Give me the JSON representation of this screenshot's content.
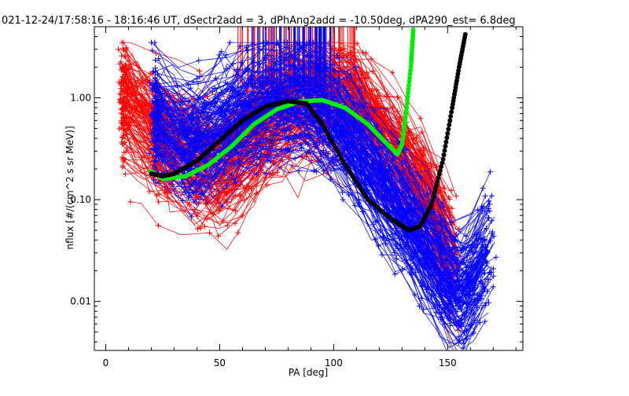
{
  "chart_data": {
    "type": "line",
    "title": "021-12-24/17:58:16 - 18:16:46 UT, dSectr2add = 3, dPhAng2add = -10.50deg, dPA290_est=    6.8deg",
    "xlabel": "PA [deg]",
    "ylabel": "nflux [#/(cm^2 s sr MeV)]",
    "xlim": [
      -5,
      183
    ],
    "ylim": [
      0.0033,
      5.0
    ],
    "yscale": "log",
    "grid": false,
    "x_ticks": [
      0,
      50,
      100,
      150
    ],
    "x_tick_labels": [
      "0",
      "50",
      "100",
      "150"
    ],
    "y_ticks": [
      0.01,
      0.1,
      1.0
    ],
    "y_tick_labels": [
      "0.01",
      "0.10",
      "1.00"
    ],
    "colors": {
      "red": "#ff0000",
      "blue": "#0000ff",
      "green": "#00ee00",
      "black": "#000000"
    },
    "series": [
      {
        "color": "red",
        "style": "line-with-plus-markers",
        "values_sample": [
          [
            8,
            0.9
          ],
          [
            25,
            0.35
          ],
          [
            50,
            0.18
          ],
          [
            75,
            0.65
          ],
          [
            88,
            0.95
          ],
          [
            100,
            0.92
          ],
          [
            110,
            0.85
          ],
          [
            125,
            0.3
          ],
          [
            140,
            0.1
          ],
          [
            155,
            0.02
          ]
        ]
      },
      {
        "color": "blue",
        "style": "line-with-plus-markers",
        "values_sample": [
          [
            22,
            0.6
          ],
          [
            35,
            0.3
          ],
          [
            50,
            0.45
          ],
          [
            65,
            0.75
          ],
          [
            85,
            0.95
          ],
          [
            100,
            0.6
          ],
          [
            115,
            0.2
          ],
          [
            135,
            0.05
          ],
          [
            155,
            0.01
          ],
          [
            170,
            0.03
          ]
        ]
      },
      {
        "color": "green",
        "style": "thick-dotted-curve",
        "x": [
          20,
          25,
          35,
          45,
          55,
          65,
          75,
          85,
          95,
          105,
          115,
          122,
          128,
          130,
          132,
          134,
          135
        ],
        "values": [
          0.19,
          0.16,
          0.17,
          0.22,
          0.33,
          0.55,
          0.77,
          0.92,
          0.95,
          0.8,
          0.55,
          0.38,
          0.28,
          0.35,
          0.8,
          2.2,
          5.0
        ]
      },
      {
        "color": "black",
        "style": "thick-dotted-curve",
        "x": [
          20,
          25,
          30,
          40,
          50,
          60,
          70,
          80,
          88,
          95,
          105,
          115,
          125,
          133,
          138,
          143,
          148,
          152,
          155,
          158
        ],
        "values": [
          0.18,
          0.17,
          0.18,
          0.24,
          0.38,
          0.6,
          0.82,
          0.93,
          0.88,
          0.55,
          0.22,
          0.1,
          0.065,
          0.05,
          0.055,
          0.09,
          0.25,
          0.8,
          2.0,
          4.5
        ]
      }
    ]
  }
}
